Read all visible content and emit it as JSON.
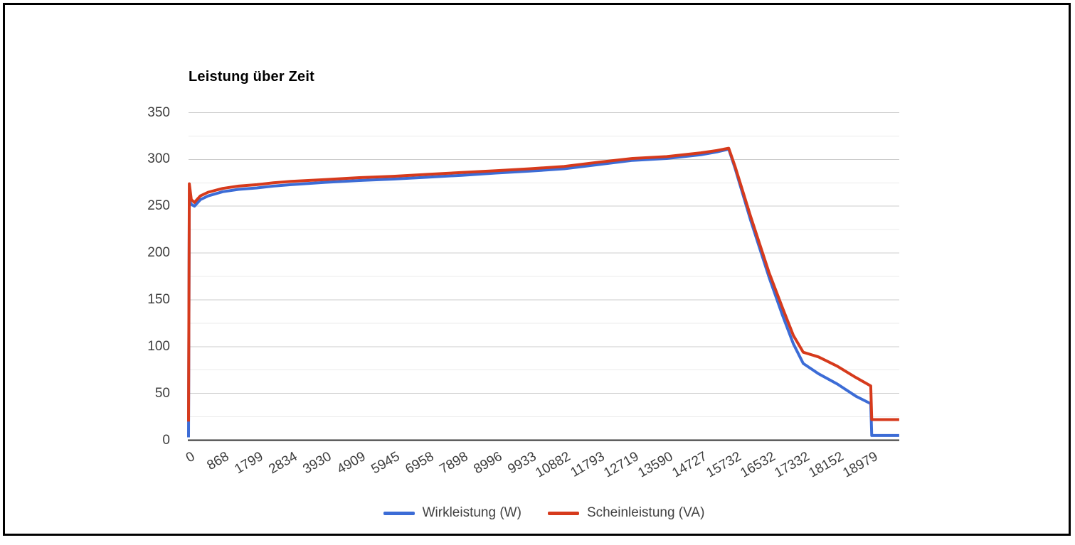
{
  "frame": {
    "border_color": "#000000",
    "background": "#ffffff"
  },
  "chart": {
    "title": "Leistung über Zeit",
    "colors": {
      "series_wirkleistung": "#3c6cd6",
      "series_scheinleistung": "#d63a1c",
      "grid_major": "#cccccc",
      "grid_minor": "#ebebeb",
      "axis_line": "#333333",
      "tick_text": "#3d3d3d",
      "title_text": "#000000",
      "legend_text": "#424242"
    },
    "legend": [
      {
        "label": "Wirkleistung (W)"
      },
      {
        "label": "Scheinleistung (VA)"
      }
    ]
  },
  "chart_data": {
    "type": "line",
    "title": "Leistung über Zeit",
    "xlabel": "",
    "ylabel": "",
    "ylim": [
      0,
      350
    ],
    "y_major_step": 50,
    "y_minor_step": 25,
    "y_tick_labels": [
      "0",
      "50",
      "100",
      "150",
      "200",
      "250",
      "300",
      "350"
    ],
    "x_axis_type": "category",
    "x_tick_labels": [
      "0",
      "868",
      "1799",
      "2834",
      "3930",
      "4909",
      "5945",
      "6958",
      "7898",
      "8996",
      "9933",
      "10882",
      "11793",
      "12719",
      "13590",
      "14727",
      "15732",
      "16532",
      "17332",
      "18152",
      "18979"
    ],
    "x_tick_times": [
      0,
      868,
      1799,
      2834,
      3930,
      4909,
      5945,
      6958,
      7898,
      8996,
      9933,
      10882,
      11793,
      12719,
      13590,
      14727,
      15732,
      16532,
      17332,
      18152,
      18979
    ],
    "x_end_time": 19650,
    "grid": true,
    "legend_position": "bottom",
    "series": [
      {
        "name": "Wirkleistung (W)",
        "unit": "W",
        "color": "#3c6cd6",
        "points": [
          [
            0,
            3
          ],
          [
            20,
            256
          ],
          [
            70,
            252
          ],
          [
            150,
            250
          ],
          [
            300,
            257
          ],
          [
            500,
            261
          ],
          [
            868,
            265.5
          ],
          [
            1300,
            268
          ],
          [
            1799,
            269.5
          ],
          [
            2300,
            271.5
          ],
          [
            2834,
            273
          ],
          [
            3930,
            275.5
          ],
          [
            4909,
            277.5
          ],
          [
            5945,
            279
          ],
          [
            6958,
            281
          ],
          [
            7898,
            283
          ],
          [
            8996,
            285.5
          ],
          [
            9933,
            287.5
          ],
          [
            10882,
            290
          ],
          [
            11793,
            294.5
          ],
          [
            12719,
            299
          ],
          [
            13590,
            301
          ],
          [
            14727,
            305
          ],
          [
            15200,
            308
          ],
          [
            15550,
            311
          ],
          [
            15732,
            291
          ],
          [
            16100,
            235
          ],
          [
            16532,
            174
          ],
          [
            16850,
            133
          ],
          [
            17100,
            103
          ],
          [
            17332,
            82
          ],
          [
            17700,
            71
          ],
          [
            18152,
            60
          ],
          [
            18600,
            47
          ],
          [
            18960,
            39
          ],
          [
            18985,
            5
          ],
          [
            19650,
            5
          ]
        ]
      },
      {
        "name": "Scheinleistung (VA)",
        "unit": "VA",
        "color": "#d63a1c",
        "points": [
          [
            0,
            20
          ],
          [
            20,
            274
          ],
          [
            70,
            257
          ],
          [
            150,
            254
          ],
          [
            300,
            261
          ],
          [
            500,
            265
          ],
          [
            868,
            269
          ],
          [
            1300,
            271.5
          ],
          [
            1799,
            273
          ],
          [
            2300,
            275
          ],
          [
            2834,
            276.5
          ],
          [
            3930,
            278.5
          ],
          [
            4909,
            280.5
          ],
          [
            5945,
            282
          ],
          [
            6958,
            284
          ],
          [
            7898,
            286
          ],
          [
            8996,
            288
          ],
          [
            9933,
            290
          ],
          [
            10882,
            292.5
          ],
          [
            11793,
            297
          ],
          [
            12719,
            301
          ],
          [
            13590,
            303
          ],
          [
            14727,
            307
          ],
          [
            15200,
            309.5
          ],
          [
            15550,
            312
          ],
          [
            15732,
            293
          ],
          [
            16100,
            239
          ],
          [
            16532,
            179
          ],
          [
            16850,
            141
          ],
          [
            17100,
            112
          ],
          [
            17332,
            94
          ],
          [
            17700,
            89
          ],
          [
            18152,
            79
          ],
          [
            18600,
            67
          ],
          [
            18960,
            58
          ],
          [
            18985,
            22
          ],
          [
            19650,
            22
          ]
        ]
      }
    ]
  }
}
